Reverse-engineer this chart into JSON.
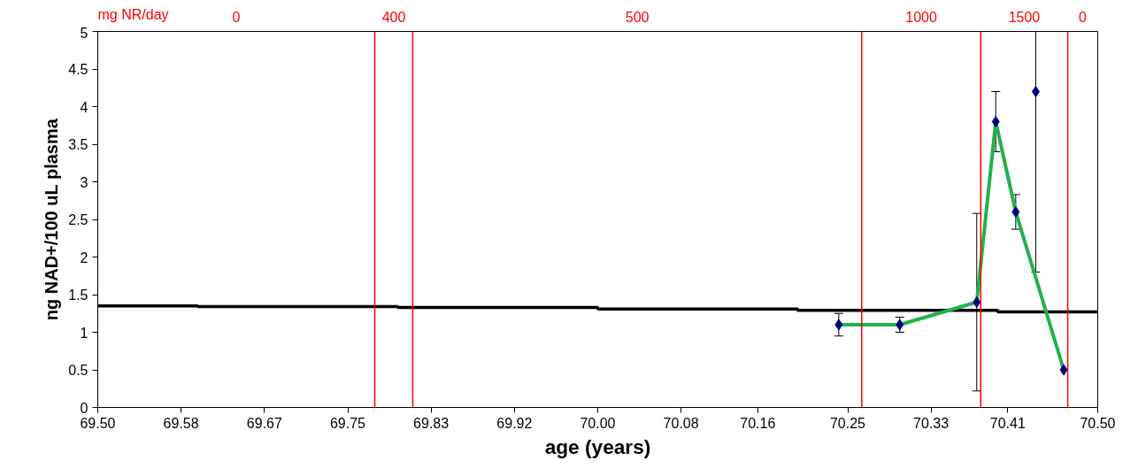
{
  "chart_data": {
    "type": "line",
    "xlabel": "age (years)",
    "ylabel": "ng NAD+/100 uL plasma",
    "xlim": [
      69.5,
      70.5
    ],
    "ylim": [
      0,
      5
    ],
    "xticks": [
      {
        "value": 69.5,
        "label": "69.50"
      },
      {
        "value": 69.5833,
        "label": "69.58"
      },
      {
        "value": 69.6667,
        "label": "69.67"
      },
      {
        "value": 69.75,
        "label": "69.75"
      },
      {
        "value": 69.8333,
        "label": "69.83"
      },
      {
        "value": 69.9167,
        "label": "69.92"
      },
      {
        "value": 70.0,
        "label": "70.00"
      },
      {
        "value": 70.0833,
        "label": "70.08"
      },
      {
        "value": 70.16,
        "label": "70.16"
      },
      {
        "value": 70.25,
        "label": "70.25"
      },
      {
        "value": 70.3333,
        "label": "70.33"
      },
      {
        "value": 70.41,
        "label": "70.41"
      },
      {
        "value": 70.5,
        "label": "70.50"
      }
    ],
    "yticks": [
      0,
      0.5,
      1,
      1.5,
      2,
      2.5,
      3,
      3.5,
      4,
      4.5,
      5
    ],
    "series": [
      {
        "type": "step",
        "color": "#000000",
        "x": [
          69.5,
          69.6,
          69.8,
          70.0,
          70.2,
          70.4,
          70.5
        ],
        "values": [
          1.35,
          1.34,
          1.33,
          1.31,
          1.29,
          1.27,
          1.26
        ]
      },
      {
        "color": "#22b14c",
        "x": [
          70.241,
          70.302,
          70.379,
          70.398,
          70.418,
          70.466
        ],
        "values": [
          1.1,
          1.1,
          1.4,
          3.8,
          2.6,
          0.5
        ]
      },
      {
        "type": "scatter",
        "color": "#000080",
        "marker": "diamond",
        "x": [
          70.241,
          70.302,
          70.379,
          70.398,
          70.418,
          70.438,
          70.466
        ],
        "values": [
          1.1,
          1.1,
          1.4,
          3.8,
          2.6,
          4.2,
          0.5
        ],
        "errors": [
          [
            0.95,
            1.25
          ],
          [
            1.0,
            1.2
          ],
          [
            0.22,
            2.58
          ],
          [
            3.4,
            4.2
          ],
          [
            2.37,
            2.83
          ],
          [
            1.8,
            5
          ],
          null
        ]
      }
    ],
    "ref_lines": [
      {
        "axis": "x",
        "value": 69.777,
        "color": "#ff0000"
      },
      {
        "axis": "x",
        "value": 69.815,
        "color": "#ff0000"
      },
      {
        "axis": "x",
        "value": 70.264,
        "color": "#ff0000"
      },
      {
        "axis": "x",
        "value": 70.383,
        "color": "#ff0000"
      },
      {
        "axis": "x",
        "value": 70.47,
        "color": "#ff0000"
      }
    ],
    "annotations": [
      "mg NR/day",
      "0",
      "400",
      "500",
      "1000",
      "1500",
      "0"
    ]
  }
}
